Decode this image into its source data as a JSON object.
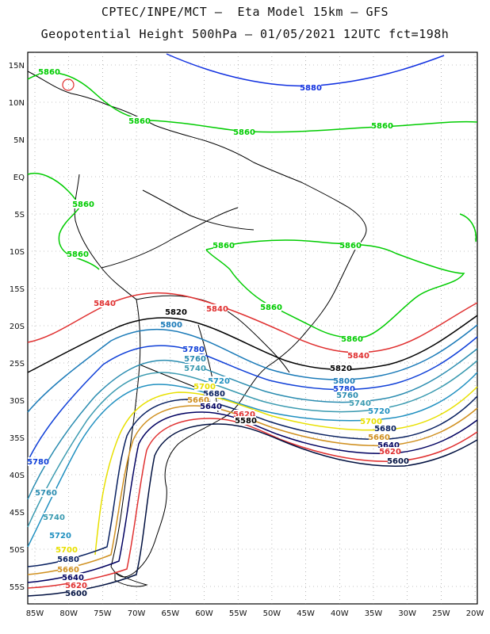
{
  "header": {
    "line1": "CPTEC/INPE/MCT –  Eta Model 15km – GFS",
    "line2": "Geopotential Height 500hPa – 01/05/2021 12UTC fct=198h"
  },
  "axes": {
    "lon_ticks": [
      "85W",
      "80W",
      "75W",
      "70W",
      "65W",
      "60W",
      "55W",
      "50W",
      "45W",
      "40W",
      "35W",
      "30W",
      "25W",
      "20W"
    ],
    "lat_ticks": [
      "15N",
      "10N",
      "5N",
      "EQ",
      "5S",
      "10S",
      "15S",
      "20S",
      "25S",
      "30S",
      "35S",
      "40S",
      "45S",
      "50S",
      "55S"
    ]
  },
  "colors": {
    "5860": "#00cc00",
    "5880": "#1030e0",
    "5840": "#e03030",
    "5820": "#000000",
    "5800": "#1a7ab8",
    "5780": "#1040d8",
    "5760": "#2a8cb0",
    "5740": "#3a9ab0",
    "5720": "#2090c0",
    "5700": "#e8e000",
    "5680": "#082060",
    "5660": "#d09020",
    "5640": "#000060",
    "5620": "#e03030",
    "5600": "#001040"
  },
  "contour_labels": [
    {
      "text": "5860",
      "level": "5860"
    },
    {
      "text": "5880",
      "level": "5880"
    },
    {
      "text": "5860",
      "level": "5860"
    },
    {
      "text": "5860",
      "level": "5860"
    },
    {
      "text": "5860",
      "level": "5860"
    },
    {
      "text": "5860",
      "level": "5860"
    },
    {
      "text": "5860",
      "level": "5860"
    },
    {
      "text": "5860",
      "level": "5860"
    },
    {
      "text": "5860",
      "level": "5860"
    },
    {
      "text": "5860",
      "level": "5860"
    },
    {
      "text": "5860",
      "level": "5860"
    },
    {
      "text": "5840",
      "level": "5840"
    },
    {
      "text": "5840",
      "level": "5840"
    },
    {
      "text": "5840",
      "level": "5840"
    },
    {
      "text": "5820",
      "level": "5820"
    },
    {
      "text": "5820",
      "level": "5820"
    },
    {
      "text": "5800",
      "level": "5800"
    },
    {
      "text": "5800",
      "level": "5800"
    },
    {
      "text": "5780",
      "level": "5780"
    },
    {
      "text": "5780",
      "level": "5780"
    },
    {
      "text": "5780",
      "level": "5780"
    },
    {
      "text": "5760",
      "level": "5760"
    },
    {
      "text": "5760",
      "level": "5760"
    },
    {
      "text": "5760",
      "level": "5760"
    },
    {
      "text": "5740",
      "level": "5740"
    },
    {
      "text": "5740",
      "level": "5740"
    },
    {
      "text": "5740",
      "level": "5740"
    },
    {
      "text": "5720",
      "level": "5720"
    },
    {
      "text": "5720",
      "level": "5720"
    },
    {
      "text": "5720",
      "level": "5720"
    },
    {
      "text": "5700",
      "level": "5700"
    },
    {
      "text": "5700",
      "level": "5700"
    },
    {
      "text": "5700",
      "level": "5700"
    },
    {
      "text": "5680",
      "level": "5680"
    },
    {
      "text": "5680",
      "level": "5680"
    },
    {
      "text": "5680",
      "level": "5680"
    },
    {
      "text": "5660",
      "level": "5660"
    },
    {
      "text": "5660",
      "level": "5660"
    },
    {
      "text": "5660",
      "level": "5660"
    },
    {
      "text": "5640",
      "level": "5640"
    },
    {
      "text": "5640",
      "level": "5640"
    },
    {
      "text": "5640",
      "level": "5640"
    },
    {
      "text": "5620",
      "level": "5620"
    },
    {
      "text": "5620",
      "level": "5620"
    },
    {
      "text": "5620",
      "level": "5620"
    },
    {
      "text": "5600",
      "level": "5600"
    },
    {
      "text": "5600",
      "level": "5600"
    },
    {
      "text": "5580",
      "level": "5580"
    }
  ]
}
